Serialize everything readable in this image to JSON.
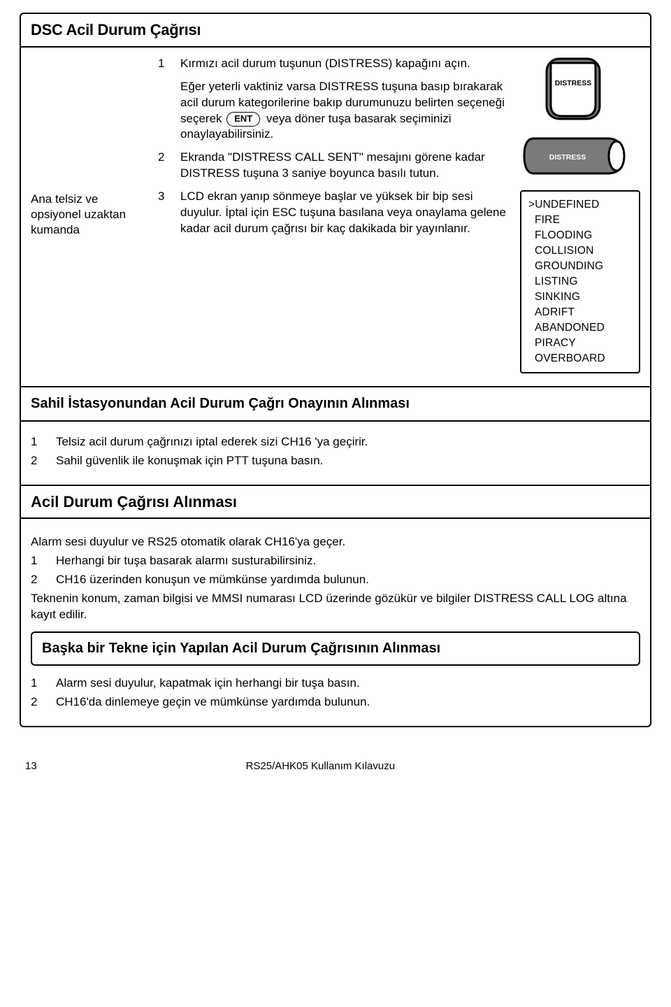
{
  "title1": "DSC Acil Durum Çağrısı",
  "leftLabel": "Ana telsiz ve opsiyonel uzaktan kumanda",
  "steps": [
    {
      "n": "1",
      "t": "Kırmızı acil durum tuşunun (DISTRESS) kapağını açın."
    },
    {
      "n": "",
      "t": "Eğer yeterli vaktiniz varsa DISTRESS tuşuna basıp bırakarak acil durum kategorilerine bakıp durumunuzu belirten seçeneği seçerek __ENT__ veya döner tuşa basarak seçiminizi onaylayabilirsiniz."
    },
    {
      "n": "2",
      "t": "Ekranda \"DISTRESS CALL SENT\" mesajını görene kadar DISTRESS tuşuna 3 saniye boyunca basılı tutun."
    },
    {
      "n": "3",
      "t": "LCD ekran yanıp sönmeye başlar ve yüksek bir bip sesi duyulur. İptal için ESC tuşuna basılana veya onaylama gelene kadar acil durum çağrısı bir kaç dakikada bir yayınlanır."
    }
  ],
  "entLabel": "ENT",
  "distressLabel": "DISTRESS",
  "statusList": [
    ">UNDEFINED",
    "  FIRE",
    "  FLOODING",
    "  COLLISION",
    "  GROUNDING",
    "  LISTING",
    "  SINKING",
    "  ADRIFT",
    "  ABANDONED",
    "  PIRACY",
    "  OVERBOARD"
  ],
  "subTitle1": "Sahil İstasyonundan Acil Durum Çağrı Onayının Alınması",
  "sub1Lines": [
    {
      "n": "1",
      "t": "Telsiz acil durum çağrınızı iptal ederek sizi CH16 'ya geçirir."
    },
    {
      "n": "2",
      "t": "Sahil güvenlik ile konuşmak için PTT tuşuna basın."
    }
  ],
  "subTitle2": "Acil Durum Çağrısı Alınması",
  "sub2Intro": "Alarm sesi duyulur ve RS25 otomatik olarak CH16'ya geçer.",
  "sub2Lines": [
    {
      "n": "1",
      "t": "Herhangi bir tuşa basarak alarmı susturabilirsiniz."
    },
    {
      "n": "2",
      "t": "CH16 üzerinden konuşun ve mümkünse yardımda bulunun."
    }
  ],
  "sub2Outro": "Teknenin konum, zaman bilgisi ve MMSI numarası LCD üzerinde gözükür ve bilgiler DISTRESS CALL LOG altına kayıt edilir.",
  "subTitle3": "Başka bir Tekne için Yapılan Acil Durum Çağrısının Alınması",
  "sub3Lines": [
    {
      "n": "1",
      "t": "Alarm sesi duyulur, kapatmak için herhangi bir tuşa basın."
    },
    {
      "n": "2",
      "t": "CH16'da dinlemeye geçin ve mümkünse yardımda bulunun."
    }
  ],
  "pageNum": "13",
  "docId": "RS25/AHK05 Kullanım Kılavuzu",
  "colors": {
    "border": "#000000",
    "bg": "#ffffff",
    "btnFill": "#7a7a7a",
    "btnStroke": "#000000",
    "text": "#000000",
    "white": "#ffffff"
  }
}
